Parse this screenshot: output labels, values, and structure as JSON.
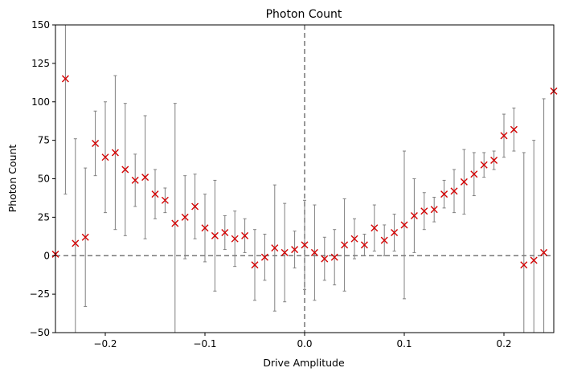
{
  "chart_data": {
    "type": "scatter",
    "title": "Photon Count",
    "xlabel": "Drive Amplitude",
    "ylabel": "Photon Count",
    "xlim": [
      -0.25,
      0.25
    ],
    "ylim": [
      -50,
      150
    ],
    "xticks": [
      -0.2,
      -0.1,
      0.0,
      0.1,
      0.2
    ],
    "xtick_labels": [
      "−0.2",
      "−0.1",
      "0.0",
      "0.1",
      "0.2"
    ],
    "yticks": [
      -50,
      -25,
      0,
      25,
      50,
      75,
      100,
      125,
      150
    ],
    "ytick_labels": [
      "−50",
      "−25",
      "0",
      "25",
      "50",
      "75",
      "100",
      "125",
      "150"
    ],
    "grid": false,
    "reference_lines": {
      "vertical_x": 0.0,
      "horizontal_y": 0,
      "style": "dashed",
      "color": "#777777"
    },
    "marker": {
      "symbol": "x",
      "color": "#d40000"
    },
    "errorbar_color": "#808080",
    "points": [
      {
        "x": -0.25,
        "y": 1,
        "err": 0
      },
      {
        "x": -0.24,
        "y": 115,
        "err": 75
      },
      {
        "x": -0.23,
        "y": 8,
        "err": 68
      },
      {
        "x": -0.22,
        "y": 12,
        "err": 45
      },
      {
        "x": -0.21,
        "y": 73,
        "err": 21
      },
      {
        "x": -0.2,
        "y": 64,
        "err": 36
      },
      {
        "x": -0.19,
        "y": 67,
        "err": 50
      },
      {
        "x": -0.18,
        "y": 56,
        "err": 43
      },
      {
        "x": -0.17,
        "y": 49,
        "err": 17
      },
      {
        "x": -0.16,
        "y": 51,
        "err": 40
      },
      {
        "x": -0.15,
        "y": 40,
        "err": 16
      },
      {
        "x": -0.14,
        "y": 36,
        "err": 8
      },
      {
        "x": -0.13,
        "y": 21,
        "err": 78
      },
      {
        "x": -0.12,
        "y": 25,
        "err": 27
      },
      {
        "x": -0.11,
        "y": 32,
        "err": 21
      },
      {
        "x": -0.1,
        "y": 18,
        "err": 22
      },
      {
        "x": -0.09,
        "y": 13,
        "err": 36
      },
      {
        "x": -0.08,
        "y": 15,
        "err": 11
      },
      {
        "x": -0.07,
        "y": 11,
        "err": 18
      },
      {
        "x": -0.06,
        "y": 13,
        "err": 11
      },
      {
        "x": -0.05,
        "y": -6,
        "err": 23
      },
      {
        "x": -0.04,
        "y": -1,
        "err": 15
      },
      {
        "x": -0.03,
        "y": 5,
        "err": 41
      },
      {
        "x": -0.02,
        "y": 2,
        "err": 32
      },
      {
        "x": -0.01,
        "y": 4,
        "err": 12
      },
      {
        "x": 0.0,
        "y": 7,
        "err": 29
      },
      {
        "x": 0.01,
        "y": 2,
        "err": 31
      },
      {
        "x": 0.02,
        "y": -2,
        "err": 14
      },
      {
        "x": 0.03,
        "y": -1,
        "err": 18
      },
      {
        "x": 0.04,
        "y": 7,
        "err": 30
      },
      {
        "x": 0.05,
        "y": 11,
        "err": 13
      },
      {
        "x": 0.06,
        "y": 7,
        "err": 7
      },
      {
        "x": 0.07,
        "y": 18,
        "err": 15
      },
      {
        "x": 0.08,
        "y": 10,
        "err": 10
      },
      {
        "x": 0.09,
        "y": 15,
        "err": 12
      },
      {
        "x": 0.1,
        "y": 20,
        "err": 48
      },
      {
        "x": 0.11,
        "y": 26,
        "err": 24
      },
      {
        "x": 0.12,
        "y": 29,
        "err": 12
      },
      {
        "x": 0.13,
        "y": 30,
        "err": 8
      },
      {
        "x": 0.14,
        "y": 40,
        "err": 9
      },
      {
        "x": 0.15,
        "y": 42,
        "err": 14
      },
      {
        "x": 0.16,
        "y": 48,
        "err": 21
      },
      {
        "x": 0.17,
        "y": 53,
        "err": 14
      },
      {
        "x": 0.18,
        "y": 59,
        "err": 8
      },
      {
        "x": 0.19,
        "y": 62,
        "err": 6
      },
      {
        "x": 0.2,
        "y": 78,
        "err": 14
      },
      {
        "x": 0.21,
        "y": 82,
        "err": 14
      },
      {
        "x": 0.22,
        "y": -6,
        "err": 73
      },
      {
        "x": 0.23,
        "y": -3,
        "err": 78
      },
      {
        "x": 0.24,
        "y": 2,
        "err": 100
      },
      {
        "x": 0.25,
        "y": 107,
        "err": 0
      }
    ]
  }
}
